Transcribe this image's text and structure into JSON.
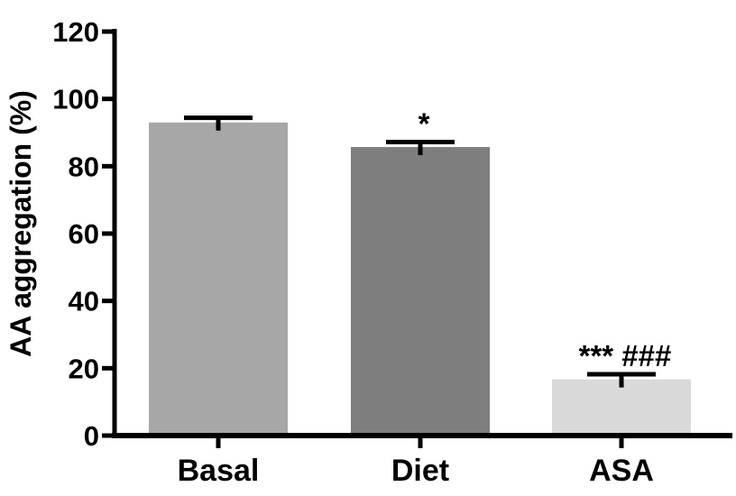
{
  "page": {
    "background_color": "#ffffff"
  },
  "chart_data": {
    "type": "bar",
    "title": "",
    "xlabel": "",
    "ylabel": "AA aggregation (%)",
    "categories": [
      "Basal",
      "Diet",
      "ASA"
    ],
    "values": [
      93,
      85.7,
      16.7
    ],
    "errors": [
      1.4,
      1.5,
      1.5
    ],
    "error_direction": "upper",
    "ylim": [
      0,
      120
    ],
    "yticks": [
      0,
      20,
      40,
      60,
      80,
      100,
      120
    ],
    "grid": false,
    "legend": false,
    "bar_colors": [
      "#a7a7a7",
      "#7e7e7e",
      "#d9d9d9"
    ],
    "axis_color": "#000000",
    "text_color": "#000000",
    "annotations": [
      {
        "category": "Diet",
        "text": "*"
      },
      {
        "category": "ASA",
        "text": "***  ###"
      }
    ]
  }
}
